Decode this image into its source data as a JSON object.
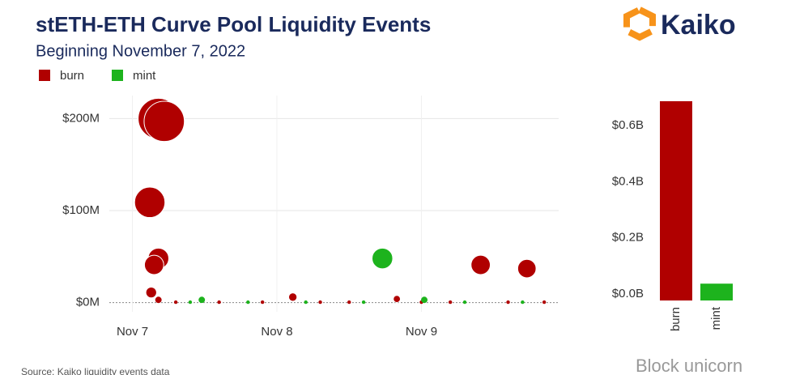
{
  "chart_data": [
    {
      "type": "scatter",
      "title": "stETH-ETH Curve Pool Liquidity Events",
      "subtitle": "Beginning November 7,  2022",
      "xlim": [
        -0.16,
        2.95
      ],
      "xticks": [
        {
          "value": 0,
          "label": "Nov 7"
        },
        {
          "value": 1,
          "label": "Nov 8"
        },
        {
          "value": 2,
          "label": "Nov 9"
        }
      ],
      "ylim": [
        -10,
        225
      ],
      "yticks": [
        {
          "value": 0,
          "label": "$0M"
        },
        {
          "value": 100,
          "label": "$100M"
        },
        {
          "value": 200,
          "label": "$200M"
        }
      ],
      "grid": true,
      "series": [
        {
          "name": "burn",
          "color": "#b00000",
          "x": [
            0.3,
            0.6,
            0.9,
            1.3,
            1.5,
            2.0,
            2.2,
            2.6,
            2.85,
            0.18,
            0.22,
            0.12,
            0.18,
            0.15,
            0.13,
            0.18,
            1.11,
            1.83,
            2.41,
            2.73
          ],
          "values": [
            0.5,
            0.5,
            0.5,
            0.5,
            0.5,
            0.5,
            0.5,
            0.5,
            0.5,
            200,
            197,
            109,
            48,
            41,
            11,
            3,
            6,
            4,
            41,
            37
          ]
        },
        {
          "name": "mint",
          "color": "#1db31d",
          "x": [
            0.4,
            0.8,
            1.2,
            1.6,
            2.3,
            2.7,
            1.73,
            0.48,
            2.02
          ],
          "values": [
            0.5,
            0.5,
            0.5,
            0.5,
            0.5,
            0.5,
            48,
            3,
            3
          ]
        }
      ]
    },
    {
      "type": "bar",
      "categories": [
        "burn",
        "mint"
      ],
      "values": [
        0.71,
        0.06
      ],
      "colors": [
        "#b00000",
        "#1db31d"
      ],
      "ylim": [
        0,
        0.73
      ],
      "yticks": [
        {
          "value": 0,
          "label": "$0.0B"
        },
        {
          "value": 0.2,
          "label": "$0.2B"
        },
        {
          "value": 0.4,
          "label": "$0.4B"
        },
        {
          "value": 0.6,
          "label": "$0.6B"
        }
      ]
    }
  ],
  "logo": "Kaiko",
  "source": "Source: Kaiko liquidity events data",
  "watermark": "Block unicorn"
}
